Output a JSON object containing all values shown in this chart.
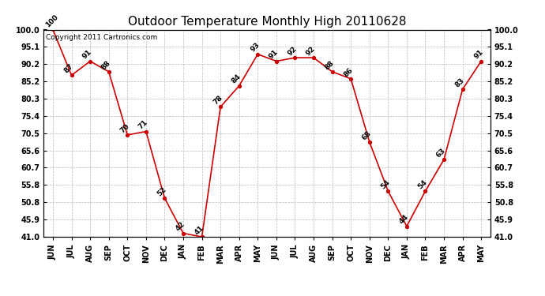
{
  "title": "Outdoor Temperature Monthly High 20110628",
  "copyright": "Copyright 2011 Cartronics.com",
  "months": [
    "JUN",
    "JUL",
    "AUG",
    "SEP",
    "OCT",
    "NOV",
    "DEC",
    "JAN",
    "FEB",
    "MAR",
    "APR",
    "MAY",
    "JUN",
    "JUL",
    "AUG",
    "SEP",
    "OCT",
    "NOV",
    "DEC",
    "JAN",
    "FEB",
    "MAR",
    "APR",
    "MAY"
  ],
  "values": [
    100,
    87,
    91,
    88,
    70,
    71,
    52,
    42,
    41,
    78,
    84,
    93,
    91,
    92,
    92,
    88,
    86,
    68,
    54,
    44,
    54,
    63,
    83,
    91
  ],
  "line_color": "#cc0000",
  "marker": "o",
  "marker_color": "#cc0000",
  "grid_color": "#bbbbbb",
  "bg_color": "#ffffff",
  "ylim_min": 41.0,
  "ylim_max": 100.0,
  "yticks": [
    41.0,
    45.9,
    50.8,
    55.8,
    60.7,
    65.6,
    70.5,
    75.4,
    80.3,
    85.2,
    90.2,
    95.1,
    100.0
  ],
  "title_fontsize": 11,
  "label_fontsize": 6.5,
  "tick_fontsize": 7,
  "copyright_fontsize": 6.5
}
